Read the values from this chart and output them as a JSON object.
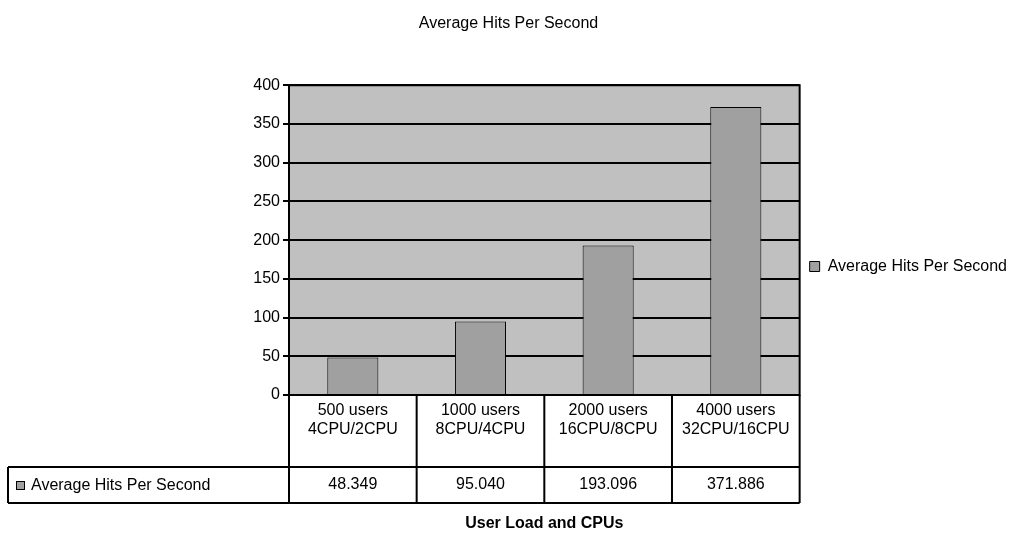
{
  "chart_data": {
    "type": "bar",
    "title": "Average Hits Per Second",
    "xlabel": "User Load and CPUs",
    "categories": [
      "500 users 4CPU/2CPU",
      "1000 users 8CPU/4CPU",
      "2000 users 16CPU/8CPU",
      "4000 users 32CPU/16CPU"
    ],
    "series": [
      {
        "name": "Average Hits Per Second",
        "color": "#a0a0a0",
        "values": [
          48.349,
          95.04,
          193.096,
          371.886
        ],
        "value_labels": [
          "48.349",
          "95.040",
          "193.096",
          "371.886"
        ]
      }
    ],
    "ylim": [
      0,
      400
    ],
    "yticks": [
      0,
      50,
      100,
      150,
      200,
      250,
      300,
      350,
      400
    ],
    "grid": "y",
    "legend": "right"
  }
}
